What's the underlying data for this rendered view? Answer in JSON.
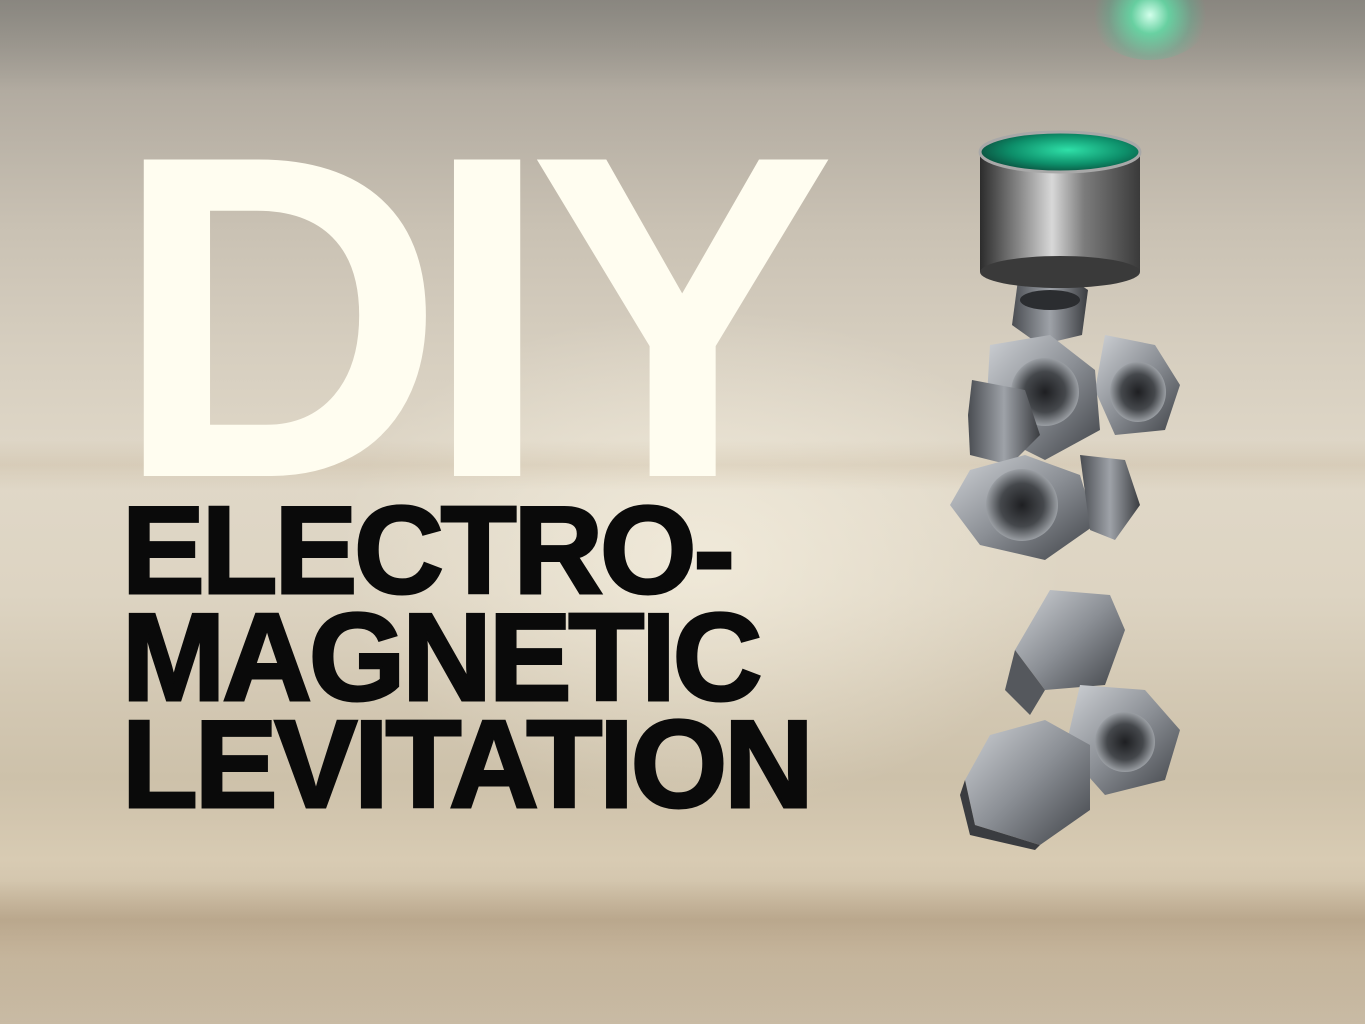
{
  "title": {
    "main": "DIY",
    "lines": [
      "ELECTRO-",
      "MAGNETIC",
      "LEVITATION"
    ]
  },
  "colors": {
    "main_title": "#fffdf0",
    "subtitle": "#0a0a0a",
    "led_glow": "#5ae6aa"
  },
  "illustration": {
    "magnet": "cylinder-magnet",
    "objects": "hex-nut"
  }
}
